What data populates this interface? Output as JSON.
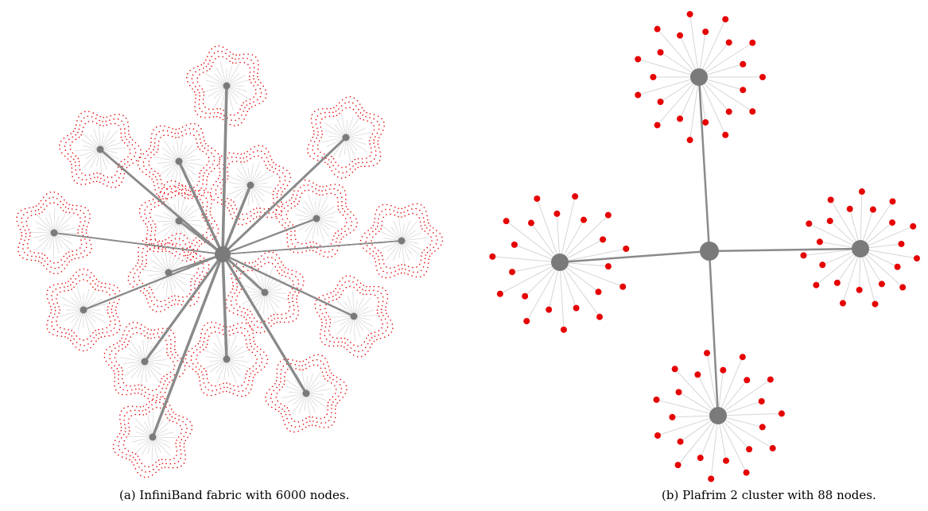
{
  "figure": {
    "panels": [
      {
        "id": "a",
        "caption": "(a) InfiniBand fabric with 6000 nodes."
      },
      {
        "id": "b",
        "caption": "(b) Plafrim 2 cluster with 88 nodes."
      }
    ]
  },
  "colors": {
    "switch": "#7a7a7a",
    "trunk_link": "#8a8a8a",
    "leaf_link": "#d6d6d6",
    "compute_node": "#e60000"
  }
}
